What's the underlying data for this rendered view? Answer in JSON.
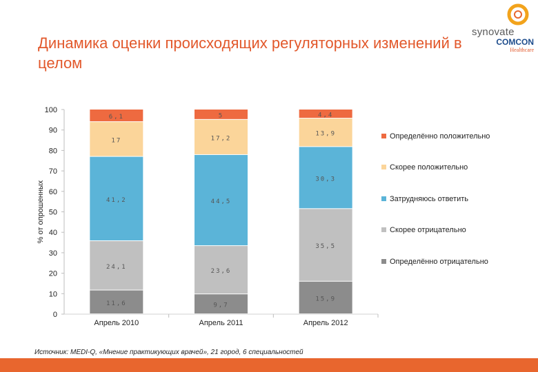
{
  "title": "Динамика оценки происходящих регуляторных изменений в целом",
  "logo": {
    "line1": "synovate",
    "line2": "COMCON",
    "line3": "Healthcare"
  },
  "source": "Источник:  MEDI-Q, «Мнение практикующих врачей», 21 город, 6 специальностей",
  "colors": {
    "accent": "#e2582b",
    "bottom_bar": "#e8662e"
  },
  "chart_data": {
    "type": "bar",
    "stacked": true,
    "title": "",
    "xlabel": "",
    "ylabel": "% от опрошенных",
    "ylim": [
      0,
      100
    ],
    "yticks": [
      0,
      10,
      20,
      30,
      40,
      50,
      60,
      70,
      80,
      90,
      100
    ],
    "legend_position": "right",
    "categories": [
      "Апрель 2010",
      "Апрель 2011",
      "Апрель 2012"
    ],
    "series": [
      {
        "name": "Определённо отрицательно",
        "color": "#8c8c8c",
        "values": [
          11.6,
          9.7,
          15.9
        ],
        "labels": [
          "11,6",
          "9,7",
          "15,9"
        ]
      },
      {
        "name": "Скорее отрицательно",
        "color": "#c0c0c0",
        "values": [
          24.1,
          23.6,
          35.5
        ],
        "labels": [
          "24,1",
          "23,6",
          "35,5"
        ]
      },
      {
        "name": "Затрудняюсь ответить",
        "color": "#5bb4d8",
        "values": [
          41.2,
          44.5,
          30.3
        ],
        "labels": [
          "41,2",
          "44,5",
          "30,3"
        ]
      },
      {
        "name": "Скорее положительно",
        "color": "#fbd59a",
        "values": [
          17,
          17.2,
          13.9
        ],
        "labels": [
          "17",
          "17,2",
          "13,9"
        ]
      },
      {
        "name": "Определённо положительно",
        "color": "#ee6a40",
        "values": [
          6.1,
          5,
          4.4
        ],
        "labels": [
          "6,1",
          "5",
          "4,4"
        ]
      }
    ]
  }
}
